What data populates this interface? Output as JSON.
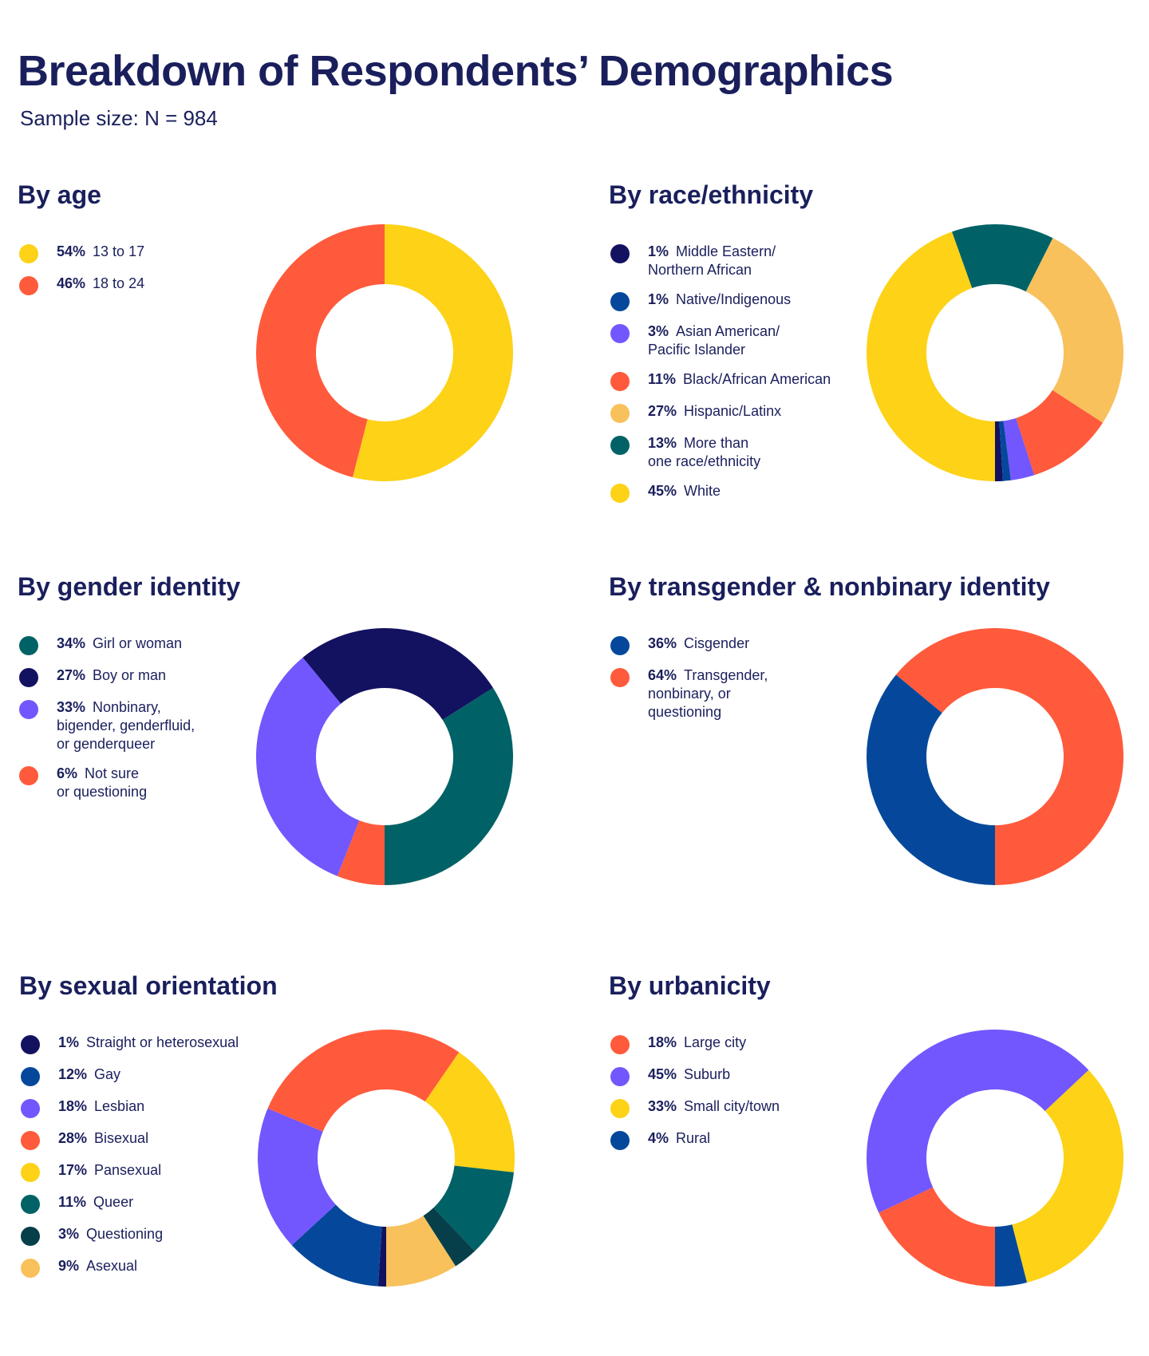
{
  "title": "Breakdown of Respondents’ Demographics",
  "subtitle": "Sample size: N = 984",
  "colors": {
    "yellow": "#fdd217",
    "orange": "#ff5a3c",
    "teal": "#006266",
    "navy": "#131261",
    "blue": "#05489b",
    "purple": "#7257fe",
    "light_orange": "#f8c15c",
    "dark_teal": "#063f4a"
  },
  "chart_data": [
    {
      "type": "pie",
      "title": "By age",
      "series": [
        {
          "pct": "54%",
          "label": "13 to 17",
          "value": 54,
          "color": "#fdd217"
        },
        {
          "pct": "46%",
          "label": "18 to 24",
          "value": 46,
          "color": "#ff5a3c"
        }
      ]
    },
    {
      "type": "pie",
      "title": "By race/ethnicity",
      "series": [
        {
          "pct": "1%",
          "label": "Middle Eastern/\nNorthern African",
          "value": 1,
          "color": "#131261"
        },
        {
          "pct": "1%",
          "label": "Native/Indigenous",
          "value": 1,
          "color": "#05489b"
        },
        {
          "pct": "3%",
          "label": "Asian American/\nPacific Islander",
          "value": 3,
          "color": "#7257fe"
        },
        {
          "pct": "11%",
          "label": "Black/African American",
          "value": 11,
          "color": "#ff5a3c"
        },
        {
          "pct": "27%",
          "label": "Hispanic/Latinx",
          "value": 27,
          "color": "#f8c15c"
        },
        {
          "pct": "13%",
          "label": "More than\none race/ethnicity",
          "value": 13,
          "color": "#006266"
        },
        {
          "pct": "45%",
          "label": "White",
          "value": 45,
          "color": "#fdd217"
        }
      ]
    },
    {
      "type": "pie",
      "title": "By gender identity",
      "series": [
        {
          "pct": "34%",
          "label": "Girl or woman",
          "value": 34,
          "color": "#006266"
        },
        {
          "pct": "27%",
          "label": "Boy or man",
          "value": 27,
          "color": "#131261"
        },
        {
          "pct": "33%",
          "label": "Nonbinary,\nbigender, genderfluid,\nor genderqueer",
          "value": 33,
          "color": "#7257fe"
        },
        {
          "pct": "6%",
          "label": "Not sure\nor questioning",
          "value": 6,
          "color": "#ff5a3c"
        }
      ]
    },
    {
      "type": "pie",
      "title": "By transgender & nonbinary identity",
      "series": [
        {
          "pct": "36%",
          "label": "Cisgender",
          "value": 36,
          "color": "#05489b"
        },
        {
          "pct": "64%",
          "label": "Transgender,\nnonbinary, or\nquestioning",
          "value": 64,
          "color": "#ff5a3c"
        }
      ]
    },
    {
      "type": "pie",
      "title": "By sexual orientation",
      "series": [
        {
          "pct": "1%",
          "label": "Straight or heterosexual",
          "value": 1,
          "color": "#131261"
        },
        {
          "pct": "12%",
          "label": "Gay",
          "value": 12,
          "color": "#05489b"
        },
        {
          "pct": "18%",
          "label": "Lesbian",
          "value": 18,
          "color": "#7257fe"
        },
        {
          "pct": "28%",
          "label": "Bisexual",
          "value": 28,
          "color": "#ff5a3c"
        },
        {
          "pct": "17%",
          "label": "Pansexual",
          "value": 17,
          "color": "#fdd217"
        },
        {
          "pct": "11%",
          "label": "Queer",
          "value": 11,
          "color": "#006266"
        },
        {
          "pct": "3%",
          "label": "Questioning",
          "value": 3,
          "color": "#063f4a"
        },
        {
          "pct": "9%",
          "label": "Asexual",
          "value": 9,
          "color": "#f8c15c"
        }
      ]
    },
    {
      "type": "pie",
      "title": "By urbanicity",
      "series": [
        {
          "pct": "18%",
          "label": "Large city",
          "value": 18,
          "color": "#ff5a3c"
        },
        {
          "pct": "45%",
          "label": "Suburb",
          "value": 45,
          "color": "#7257fe"
        },
        {
          "pct": "33%",
          "label": "Small city/town",
          "value": 33,
          "color": "#fdd217"
        },
        {
          "pct": "4%",
          "label": "Rural",
          "value": 4,
          "color": "#05489b"
        }
      ]
    }
  ]
}
